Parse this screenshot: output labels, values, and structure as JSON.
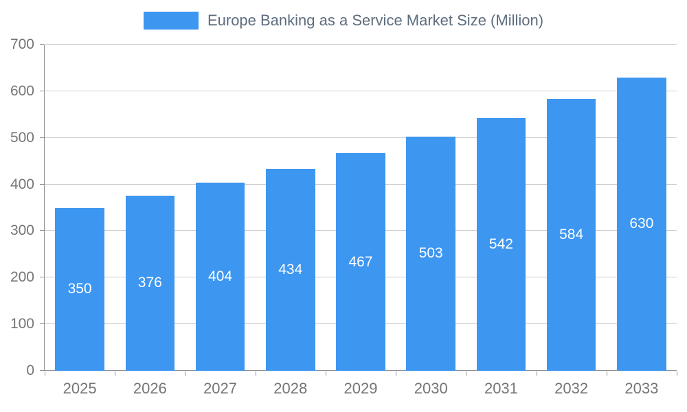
{
  "chart_data": {
    "type": "bar",
    "title": "Europe Banking as a Service Market Size (Million)",
    "categories": [
      "2025",
      "2026",
      "2027",
      "2028",
      "2029",
      "2030",
      "2031",
      "2032",
      "2033"
    ],
    "values": [
      350,
      376,
      404,
      434,
      467,
      503,
      542,
      584,
      630
    ],
    "xlabel": "",
    "ylabel": "",
    "ylim": [
      0,
      700
    ],
    "ytick_step": 100,
    "grid": true,
    "legend_position": "top-center",
    "value_labels_position": "inside-middle",
    "colors": {
      "bar": "#3D96F0",
      "value_label": "#ffffff",
      "axis_text": "#757575",
      "grid_line": "#cccccc",
      "axis_line": "#8f8f8f",
      "title_text": "#5D6D7E",
      "background": "#ffffff"
    }
  }
}
